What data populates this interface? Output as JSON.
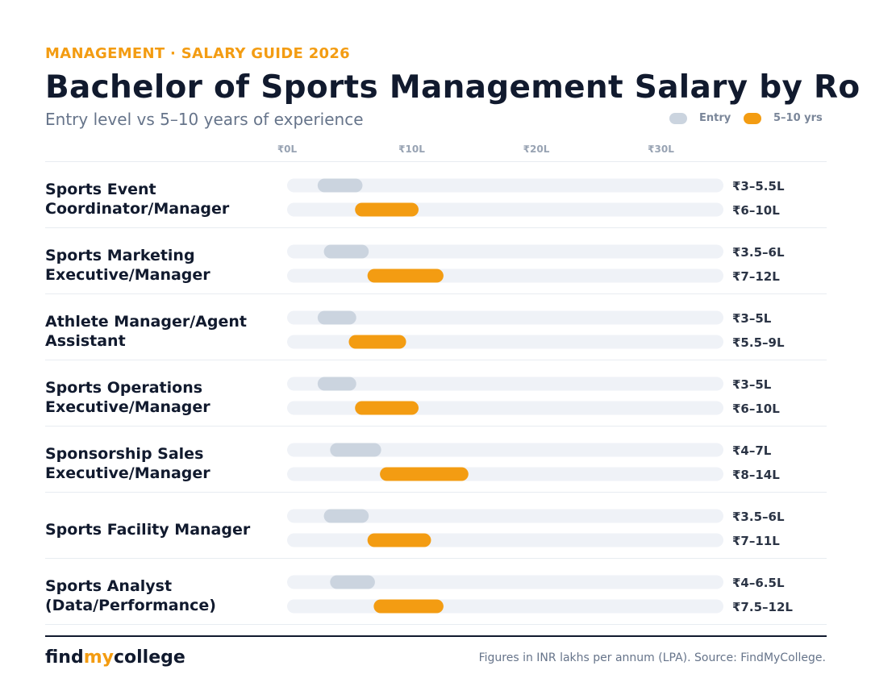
{
  "header": {
    "eyebrow": "MANAGEMENT · SALARY GUIDE 2026",
    "title": "Bachelor of Sports Management Salary by Ro",
    "subtitle": "Entry level vs 5–10 years of experience"
  },
  "legend": {
    "entry_label": "Entry",
    "experienced_label": "5–10 yrs"
  },
  "colors": {
    "entry": "#cbd4df",
    "experienced": "#f39c12",
    "track": "#eff2f7",
    "accent": "#f39c12",
    "title": "#111a2e",
    "muted": "#66748a",
    "tick": "#98a3b3"
  },
  "chart_data": {
    "type": "range-bar",
    "unit": "INR lakhs per annum",
    "x_ticks": [
      0,
      10,
      20,
      30
    ],
    "x_tick_labels": [
      "₹0L",
      "₹10L",
      "₹20L",
      "₹30L"
    ],
    "xlim": [
      0,
      35
    ],
    "legend_placement": "top-right",
    "series": [
      {
        "name": "Entry",
        "key": "entry"
      },
      {
        "name": "5–10 yrs",
        "key": "experienced"
      }
    ],
    "roles": [
      {
        "label_lines": [
          "Sports Event",
          "Coordinator/Manager"
        ],
        "entry": {
          "min": 3,
          "max": 5.5,
          "label": "₹3–5.5L"
        },
        "experienced": {
          "min": 6,
          "max": 10,
          "label": "₹6–10L"
        }
      },
      {
        "label_lines": [
          "Sports Marketing",
          "Executive/Manager"
        ],
        "entry": {
          "min": 3.5,
          "max": 6,
          "label": "₹3.5–6L"
        },
        "experienced": {
          "min": 7,
          "max": 12,
          "label": "₹7–12L"
        }
      },
      {
        "label_lines": [
          "Athlete Manager/Agent",
          "Assistant"
        ],
        "entry": {
          "min": 3,
          "max": 5,
          "label": "₹3–5L"
        },
        "experienced": {
          "min": 5.5,
          "max": 9,
          "label": "₹5.5–9L"
        }
      },
      {
        "label_lines": [
          "Sports Operations",
          "Executive/Manager"
        ],
        "entry": {
          "min": 3,
          "max": 5,
          "label": "₹3–5L"
        },
        "experienced": {
          "min": 6,
          "max": 10,
          "label": "₹6–10L"
        }
      },
      {
        "label_lines": [
          "Sponsorship Sales",
          "Executive/Manager"
        ],
        "entry": {
          "min": 4,
          "max": 7,
          "label": "₹4–7L"
        },
        "experienced": {
          "min": 8,
          "max": 14,
          "label": "₹8–14L"
        }
      },
      {
        "label_lines": [
          "Sports Facility Manager"
        ],
        "entry": {
          "min": 3.5,
          "max": 6,
          "label": "₹3.5–6L"
        },
        "experienced": {
          "min": 7,
          "max": 11,
          "label": "₹7–11L"
        }
      },
      {
        "label_lines": [
          "Sports Analyst",
          "(Data/Performance)"
        ],
        "entry": {
          "min": 4,
          "max": 6.5,
          "label": "₹4–6.5L"
        },
        "experienced": {
          "min": 7.5,
          "max": 12,
          "label": "₹7.5–12L"
        }
      }
    ]
  },
  "footer": {
    "brand_part1": "find",
    "brand_part2": "my",
    "brand_part3": "college",
    "source_note": "Figures in INR lakhs per annum (LPA). Source: FindMyCollege."
  }
}
